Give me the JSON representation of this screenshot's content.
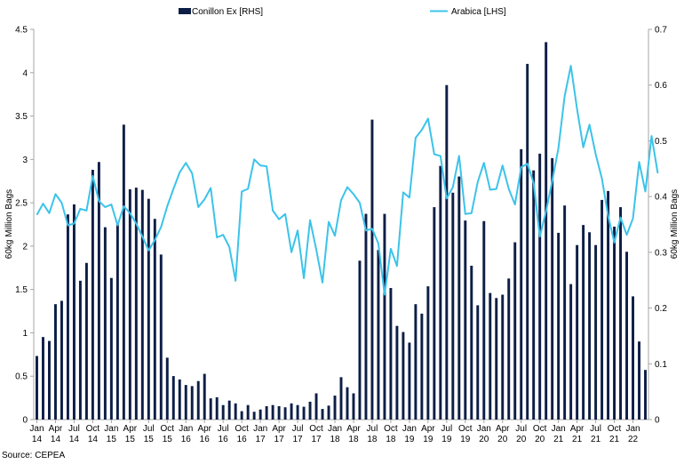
{
  "chart_data": {
    "type": "bar+line",
    "title": "",
    "source": "Source: CEPEA",
    "colors": {
      "bars": "#0d1e46",
      "line": "#3cc3ea",
      "axis": "#a6a6a6",
      "text": "#000000"
    },
    "legend": {
      "placement": "top-center",
      "items": [
        {
          "label": "Conillon Ex [RHS]",
          "kind": "bar"
        },
        {
          "label": "Arabica [LHS]",
          "kind": "line"
        }
      ]
    },
    "y_left": {
      "label": "60kg Million Bags",
      "range": [
        0,
        4.5
      ],
      "ticks": [
        "0",
        "0.5",
        "1",
        "1.5",
        "2",
        "2.5",
        "3",
        "3.5",
        "4",
        "4.5"
      ]
    },
    "y_right": {
      "label": "60kg Million Bags",
      "range": [
        0,
        0.7
      ],
      "ticks": [
        "0",
        "0.1",
        "0.2",
        "0.3",
        "0.4",
        "0.5",
        "0.6",
        "0.7"
      ]
    },
    "x_ticks": [
      {
        "month": "Jan",
        "year": "14"
      },
      {
        "month": "Apr",
        "year": "14"
      },
      {
        "month": "Jul",
        "year": "14"
      },
      {
        "month": "Oct",
        "year": "14"
      },
      {
        "month": "Jan",
        "year": "15"
      },
      {
        "month": "Apr",
        "year": "15"
      },
      {
        "month": "Jul",
        "year": "15"
      },
      {
        "month": "Oct",
        "year": "15"
      },
      {
        "month": "Jan",
        "year": "16"
      },
      {
        "month": "Apr",
        "year": "16"
      },
      {
        "month": "Jul",
        "year": "16"
      },
      {
        "month": "Oct",
        "year": "16"
      },
      {
        "month": "Jan",
        "year": "17"
      },
      {
        "month": "Apr",
        "year": "17"
      },
      {
        "month": "Jul",
        "year": "17"
      },
      {
        "month": "Oct",
        "year": "17"
      },
      {
        "month": "Jan",
        "year": "18"
      },
      {
        "month": "Apr",
        "year": "18"
      },
      {
        "month": "Jul",
        "year": "18"
      },
      {
        "month": "Oct",
        "year": "18"
      },
      {
        "month": "Jan",
        "year": "19"
      },
      {
        "month": "Apr",
        "year": "19"
      },
      {
        "month": "Jul",
        "year": "19"
      },
      {
        "month": "Oct",
        "year": "19"
      },
      {
        "month": "Jan",
        "year": "20"
      },
      {
        "month": "Apr",
        "year": "20"
      },
      {
        "month": "Jul",
        "year": "20"
      },
      {
        "month": "Oct",
        "year": "20"
      },
      {
        "month": "Jan",
        "year": "21"
      },
      {
        "month": "Apr",
        "year": "21"
      },
      {
        "month": "Jul",
        "year": "21"
      },
      {
        "month": "Oct",
        "year": "21"
      },
      {
        "month": "Jan",
        "year": "22"
      }
    ],
    "series": [
      {
        "name": "Conillon Ex [RHS]",
        "type": "bar",
        "axis": "right",
        "values": [
          0.114,
          0.148,
          0.141,
          0.207,
          0.213,
          0.368,
          0.386,
          0.249,
          0.281,
          0.448,
          0.462,
          0.345,
          0.254,
          0.35,
          0.529,
          0.413,
          0.416,
          0.412,
          0.396,
          0.36,
          0.296,
          0.111,
          0.078,
          0.072,
          0.062,
          0.06,
          0.069,
          0.082,
          0.038,
          0.04,
          0.026,
          0.034,
          0.029,
          0.015,
          0.026,
          0.014,
          0.018,
          0.024,
          0.026,
          0.024,
          0.022,
          0.029,
          0.026,
          0.023,
          0.032,
          0.047,
          0.019,
          0.025,
          0.043,
          0.076,
          0.058,
          0.047,
          0.285,
          0.369,
          0.538,
          0.304,
          0.369,
          0.236,
          0.168,
          0.157,
          0.138,
          0.207,
          0.19,
          0.239,
          0.381,
          0.455,
          0.6,
          0.407,
          0.436,
          0.357,
          0.276,
          0.205,
          0.356,
          0.227,
          0.218,
          0.224,
          0.253,
          0.318,
          0.485,
          0.638,
          0.447,
          0.477,
          0.677,
          0.469,
          0.335,
          0.384,
          0.243,
          0.313,
          0.349,
          0.336,
          0.313,
          0.394,
          0.41,
          0.346,
          0.381,
          0.301,
          0.221,
          0.14,
          0.089
        ]
      },
      {
        "name": "Arabica [LHS]",
        "type": "line",
        "axis": "left",
        "values": [
          2.36,
          2.49,
          2.38,
          2.6,
          2.5,
          2.24,
          2.26,
          2.43,
          2.41,
          2.81,
          2.52,
          2.45,
          2.48,
          2.24,
          2.46,
          2.38,
          2.26,
          2.11,
          1.95,
          2.07,
          2.22,
          2.46,
          2.66,
          2.85,
          2.96,
          2.84,
          2.45,
          2.54,
          2.67,
          2.1,
          2.13,
          1.99,
          1.6,
          2.63,
          2.66,
          3.0,
          2.93,
          2.92,
          2.41,
          2.31,
          2.37,
          1.93,
          2.18,
          1.63,
          2.3,
          1.96,
          1.58,
          2.28,
          2.12,
          2.53,
          2.68,
          2.6,
          2.5,
          2.18,
          2.2,
          2.03,
          1.44,
          1.97,
          1.77,
          2.62,
          2.56,
          3.25,
          3.34,
          3.47,
          3.06,
          3.04,
          2.55,
          2.68,
          3.04,
          2.37,
          2.38,
          2.74,
          2.96,
          2.65,
          2.66,
          2.93,
          2.66,
          2.48,
          2.91,
          2.95,
          2.73,
          2.11,
          2.4,
          2.75,
          3.13,
          3.73,
          4.08,
          3.58,
          3.14,
          3.4,
          3.06,
          2.78,
          2.35,
          2.04,
          2.33,
          2.13,
          2.32,
          2.97,
          2.63,
          3.27,
          2.84
        ]
      }
    ]
  }
}
